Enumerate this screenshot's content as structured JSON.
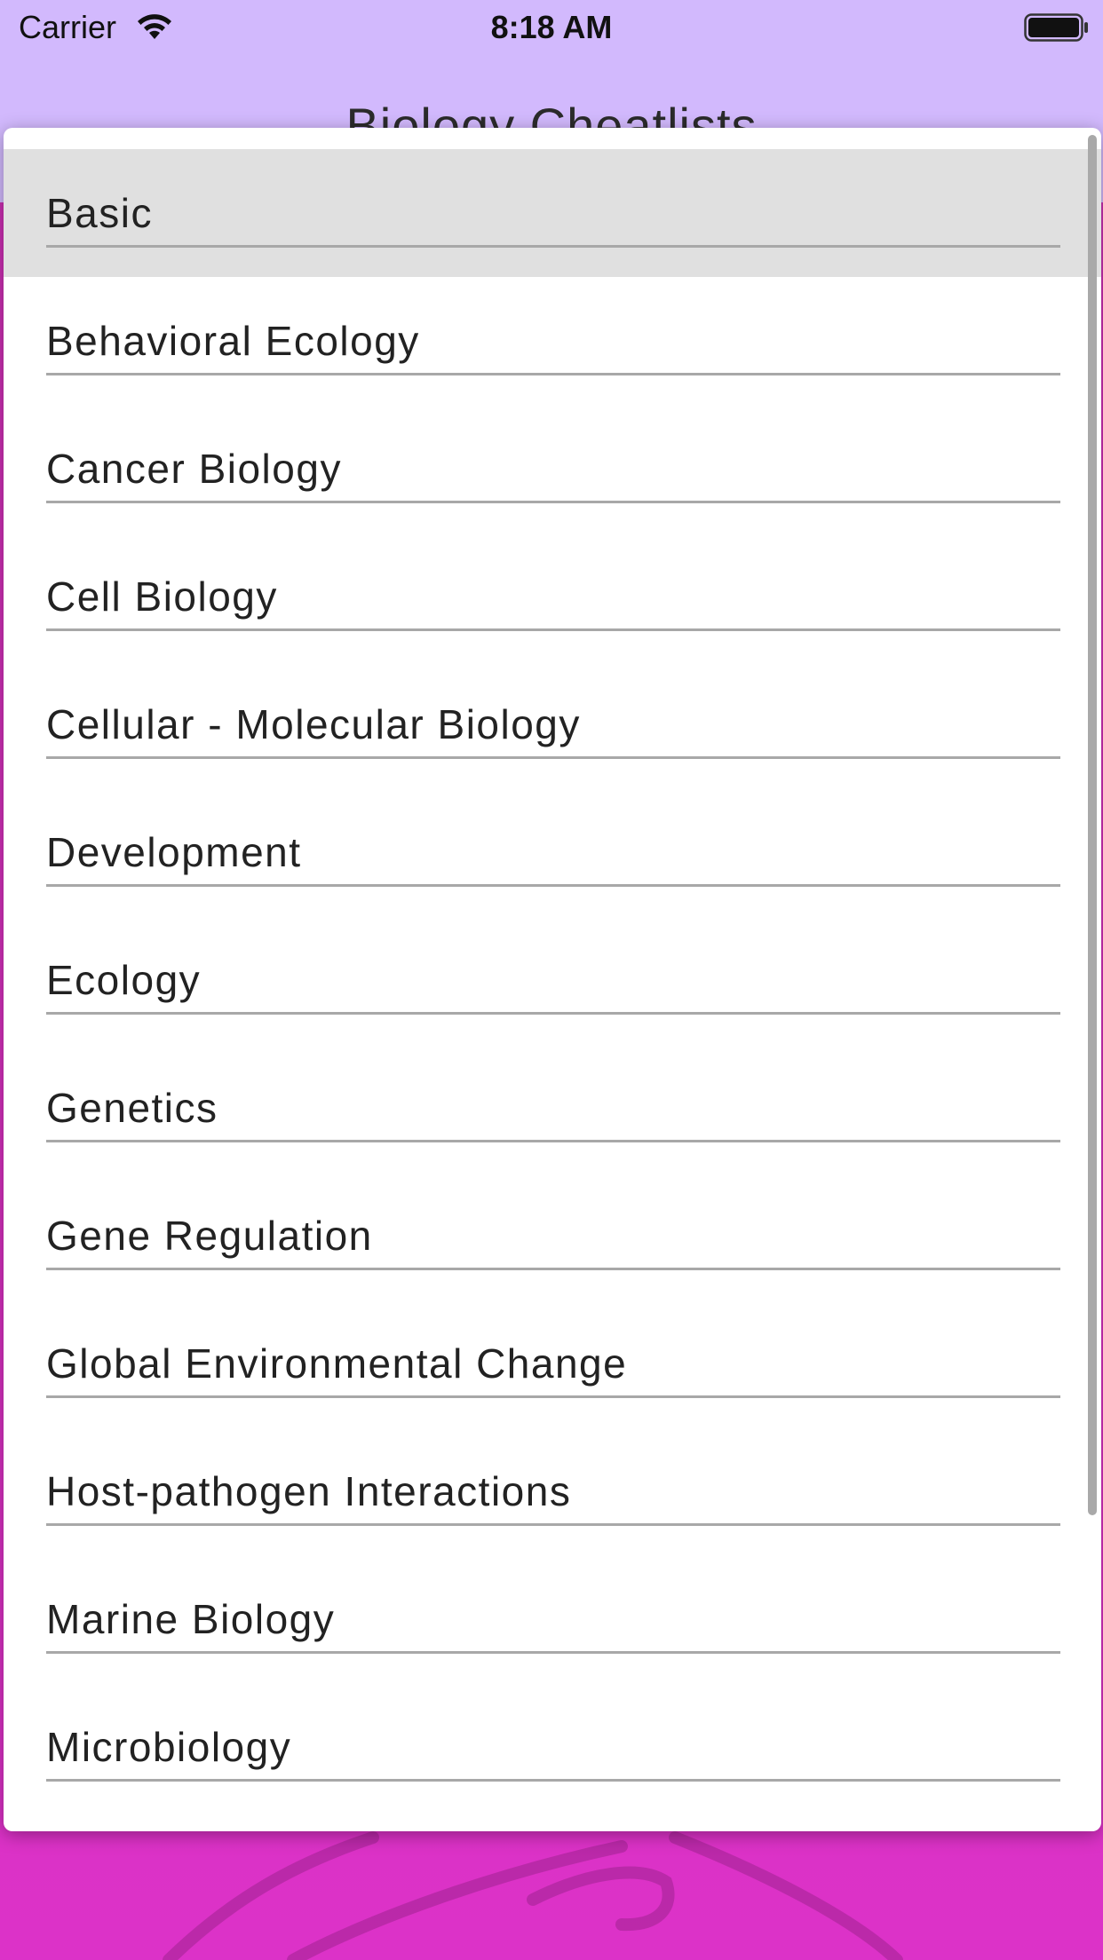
{
  "status_bar": {
    "carrier": "Carrier",
    "time": "8:18 AM",
    "wifi_icon": "wifi-icon",
    "battery_icon": "battery-icon"
  },
  "header": {
    "title": "Biology Cheatlists"
  },
  "topics": [
    {
      "label": "Basic",
      "selected": true
    },
    {
      "label": "Behavioral Ecology",
      "selected": false
    },
    {
      "label": "Cancer Biology",
      "selected": false
    },
    {
      "label": "Cell Biology",
      "selected": false
    },
    {
      "label": "Cellular - Molecular Biology",
      "selected": false
    },
    {
      "label": "Development",
      "selected": false
    },
    {
      "label": "Ecology",
      "selected": false
    },
    {
      "label": "Genetics",
      "selected": false
    },
    {
      "label": "Gene Regulation",
      "selected": false
    },
    {
      "label": "Global Environmental Change",
      "selected": false
    },
    {
      "label": "Host-pathogen Interactions",
      "selected": false
    },
    {
      "label": "Marine Biology",
      "selected": false
    },
    {
      "label": "Microbiology",
      "selected": false
    }
  ],
  "colors": {
    "header_background": "#d2b9fd",
    "background_magenta": "#d530bd",
    "selected_row": "#e0e0e0",
    "divider": "#a8a8a8"
  }
}
